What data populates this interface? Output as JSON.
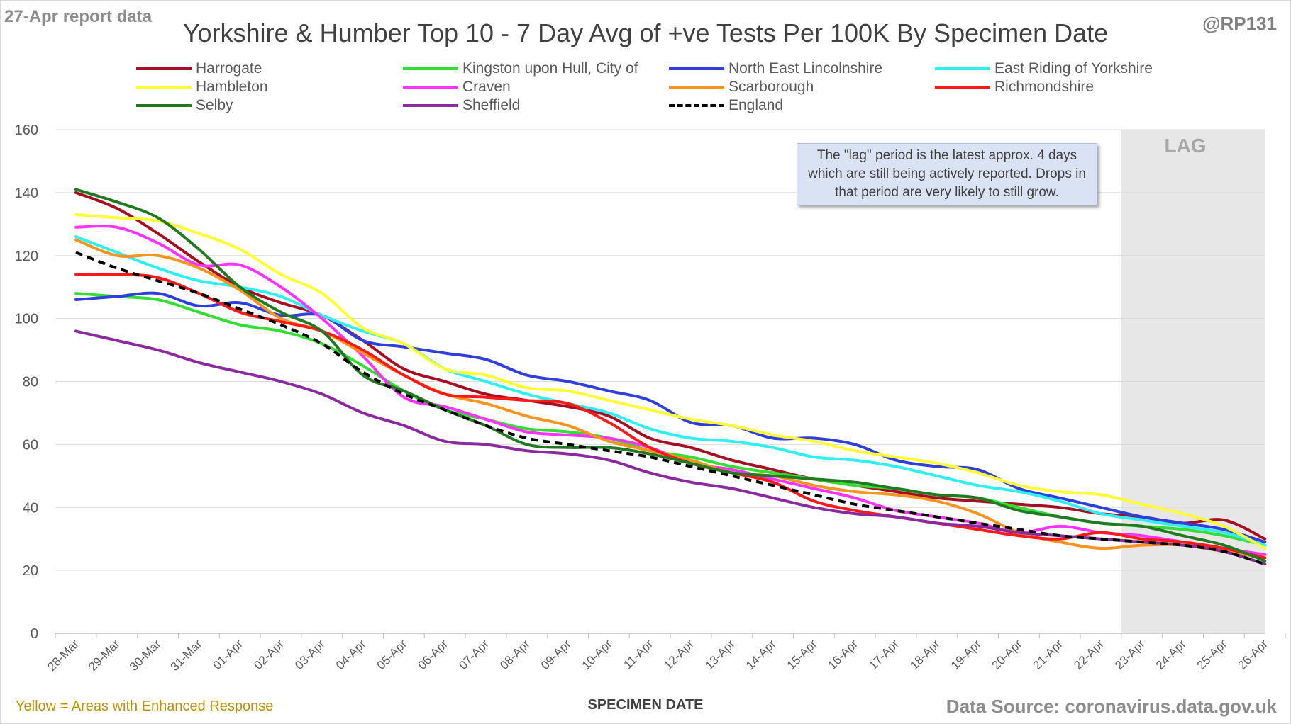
{
  "report_label": "27-Apr report data",
  "handle": "@RP131",
  "footnote": "Yellow = Areas with Enhanced Response",
  "source": "Data Source: coronavirus.data.gov.uk",
  "lag_label": "LAG",
  "lag_note": "The \"lag\" period is the latest approx. 4 days which are still being actively reported. Drops in that period are very likely to still grow.",
  "chart_data": {
    "type": "line",
    "title": "Yorkshire & Humber Top 10 - 7 Day Avg of +ve Tests Per 100K By Specimen Date",
    "xlabel": "SPECIMEN DATE",
    "ylabel": "",
    "ylim": [
      0,
      160
    ],
    "yticks": [
      0,
      20,
      40,
      60,
      80,
      100,
      120,
      140,
      160
    ],
    "grid": true,
    "legend_position": "top",
    "lag_range": [
      "23-Apr",
      "26-Apr"
    ],
    "categories": [
      "28-Mar",
      "29-Mar",
      "30-Mar",
      "31-Mar",
      "01-Apr",
      "02-Apr",
      "03-Apr",
      "04-Apr",
      "05-Apr",
      "06-Apr",
      "07-Apr",
      "08-Apr",
      "09-Apr",
      "10-Apr",
      "11-Apr",
      "12-Apr",
      "13-Apr",
      "14-Apr",
      "15-Apr",
      "16-Apr",
      "17-Apr",
      "18-Apr",
      "19-Apr",
      "20-Apr",
      "21-Apr",
      "22-Apr",
      "23-Apr",
      "24-Apr",
      "25-Apr",
      "26-Apr"
    ],
    "series": [
      {
        "name": "Harrogate",
        "color": "#a50f21",
        "dashed": false,
        "values": [
          140,
          135,
          127,
          118,
          110,
          105,
          101,
          93,
          84,
          80,
          76,
          74,
          72,
          69,
          62,
          59,
          55,
          52,
          49,
          47,
          45,
          43,
          42,
          41,
          40,
          38,
          37,
          35,
          36,
          30
        ]
      },
      {
        "name": "Kingston upon Hull, City of",
        "color": "#33dd33",
        "dashed": false,
        "values": [
          108,
          107,
          106,
          102,
          98,
          96,
          92,
          85,
          77,
          71,
          68,
          65,
          64,
          62,
          58,
          56,
          53,
          51,
          49,
          47,
          46,
          44,
          43,
          40,
          37,
          35,
          34,
          33,
          31,
          28
        ]
      },
      {
        "name": "North East Lincolnshire",
        "color": "#2e3fdb",
        "dashed": false,
        "values": [
          106,
          107,
          108,
          104,
          105,
          101,
          101,
          93,
          91,
          89,
          87,
          82,
          80,
          77,
          74,
          67,
          66,
          62,
          62,
          60,
          55,
          53,
          52,
          46,
          43,
          40,
          37,
          35,
          33,
          29
        ]
      },
      {
        "name": "East Riding of Yorkshire",
        "color": "#2ff0f0",
        "dashed": false,
        "values": [
          126,
          121,
          116,
          112,
          110,
          107,
          101,
          96,
          92,
          84,
          80,
          76,
          73,
          70,
          65,
          62,
          61,
          59,
          56,
          55,
          53,
          50,
          47,
          45,
          42,
          38,
          36,
          34,
          32,
          28
        ]
      },
      {
        "name": "Hambleton",
        "color": "#ffff33",
        "dashed": false,
        "values": [
          133,
          132,
          131,
          127,
          122,
          114,
          108,
          97,
          92,
          84,
          82,
          78,
          77,
          74,
          71,
          68,
          66,
          63,
          61,
          58,
          56,
          54,
          51,
          47,
          45,
          44,
          41,
          38,
          34,
          27
        ]
      },
      {
        "name": "Craven",
        "color": "#ff33ff",
        "dashed": false,
        "values": [
          129,
          129,
          124,
          117,
          117,
          110,
          100,
          88,
          75,
          72,
          68,
          64,
          63,
          62,
          59,
          54,
          52,
          49,
          46,
          43,
          39,
          37,
          35,
          32,
          34,
          32,
          31,
          29,
          27,
          25
        ]
      },
      {
        "name": "Scarborough",
        "color": "#f7941d",
        "dashed": false,
        "values": [
          125,
          120,
          120,
          116,
          109,
          100,
          96,
          89,
          82,
          76,
          73,
          69,
          66,
          61,
          58,
          55,
          51,
          50,
          47,
          45,
          44,
          42,
          38,
          32,
          29,
          27,
          28,
          28,
          26,
          24
        ]
      },
      {
        "name": "Richmondshire",
        "color": "#ff1a1a",
        "dashed": false,
        "values": [
          114,
          114,
          113,
          108,
          102,
          99,
          96,
          90,
          82,
          76,
          75,
          74,
          73,
          67,
          59,
          54,
          51,
          48,
          42,
          39,
          37,
          35,
          33,
          31,
          30,
          32,
          30,
          29,
          27,
          24
        ]
      },
      {
        "name": "Selby",
        "color": "#217a21",
        "dashed": false,
        "values": [
          141,
          137,
          132,
          122,
          110,
          102,
          96,
          82,
          77,
          71,
          66,
          60,
          59,
          59,
          57,
          54,
          51,
          50,
          49,
          48,
          46,
          44,
          43,
          39,
          37,
          35,
          34,
          31,
          28,
          23
        ]
      },
      {
        "name": "Sheffield",
        "color": "#8b2a9e",
        "dashed": false,
        "values": [
          96,
          93,
          90,
          86,
          83,
          80,
          76,
          70,
          66,
          61,
          60,
          58,
          57,
          55,
          51,
          48,
          46,
          43,
          40,
          38,
          37,
          35,
          34,
          32,
          31,
          30,
          29,
          28,
          26,
          22
        ]
      },
      {
        "name": "England",
        "color": "#000000",
        "dashed": true,
        "values": [
          121,
          116,
          112,
          108,
          103,
          98,
          92,
          83,
          76,
          71,
          66,
          62,
          60,
          58,
          56,
          53,
          50,
          47,
          44,
          41,
          39,
          37,
          35,
          33,
          31,
          30,
          29,
          28,
          26,
          22
        ]
      }
    ]
  }
}
